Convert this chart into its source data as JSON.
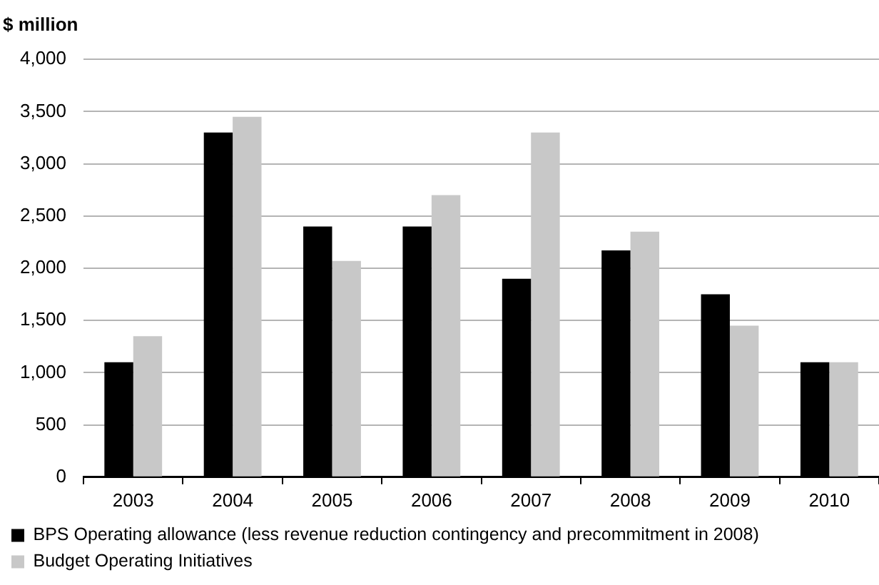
{
  "chart_data": {
    "type": "bar",
    "title": "$ million",
    "categories": [
      "2003",
      "2004",
      "2005",
      "2006",
      "2007",
      "2008",
      "2009",
      "2010"
    ],
    "series": [
      {
        "name": "BPS Operating allowance (less revenue reduction contingency and precommitment in 2008)",
        "color": "#000000",
        "values": [
          1100,
          3300,
          2400,
          2400,
          1900,
          2170,
          1750,
          1100
        ]
      },
      {
        "name": "Budget Operating Initiatives",
        "color": "#c8c8c8",
        "values": [
          1350,
          3450,
          2070,
          2700,
          3300,
          2350,
          1450,
          1100
        ]
      }
    ],
    "ylim": [
      0,
      4000
    ],
    "yticks": [
      0,
      500,
      {
        "value": 1000,
        "label": "1,000"
      },
      {
        "value": 1500,
        "label": "1,500"
      },
      {
        "value": 2000,
        "label": "2,000"
      },
      {
        "value": 2500,
        "label": "2,500"
      },
      {
        "value": 3000,
        "label": "3,000"
      },
      {
        "value": 3500,
        "label": "3,500"
      },
      {
        "value": 4000,
        "label": "4,000"
      }
    ],
    "grid": "y",
    "legend": "bottom"
  }
}
